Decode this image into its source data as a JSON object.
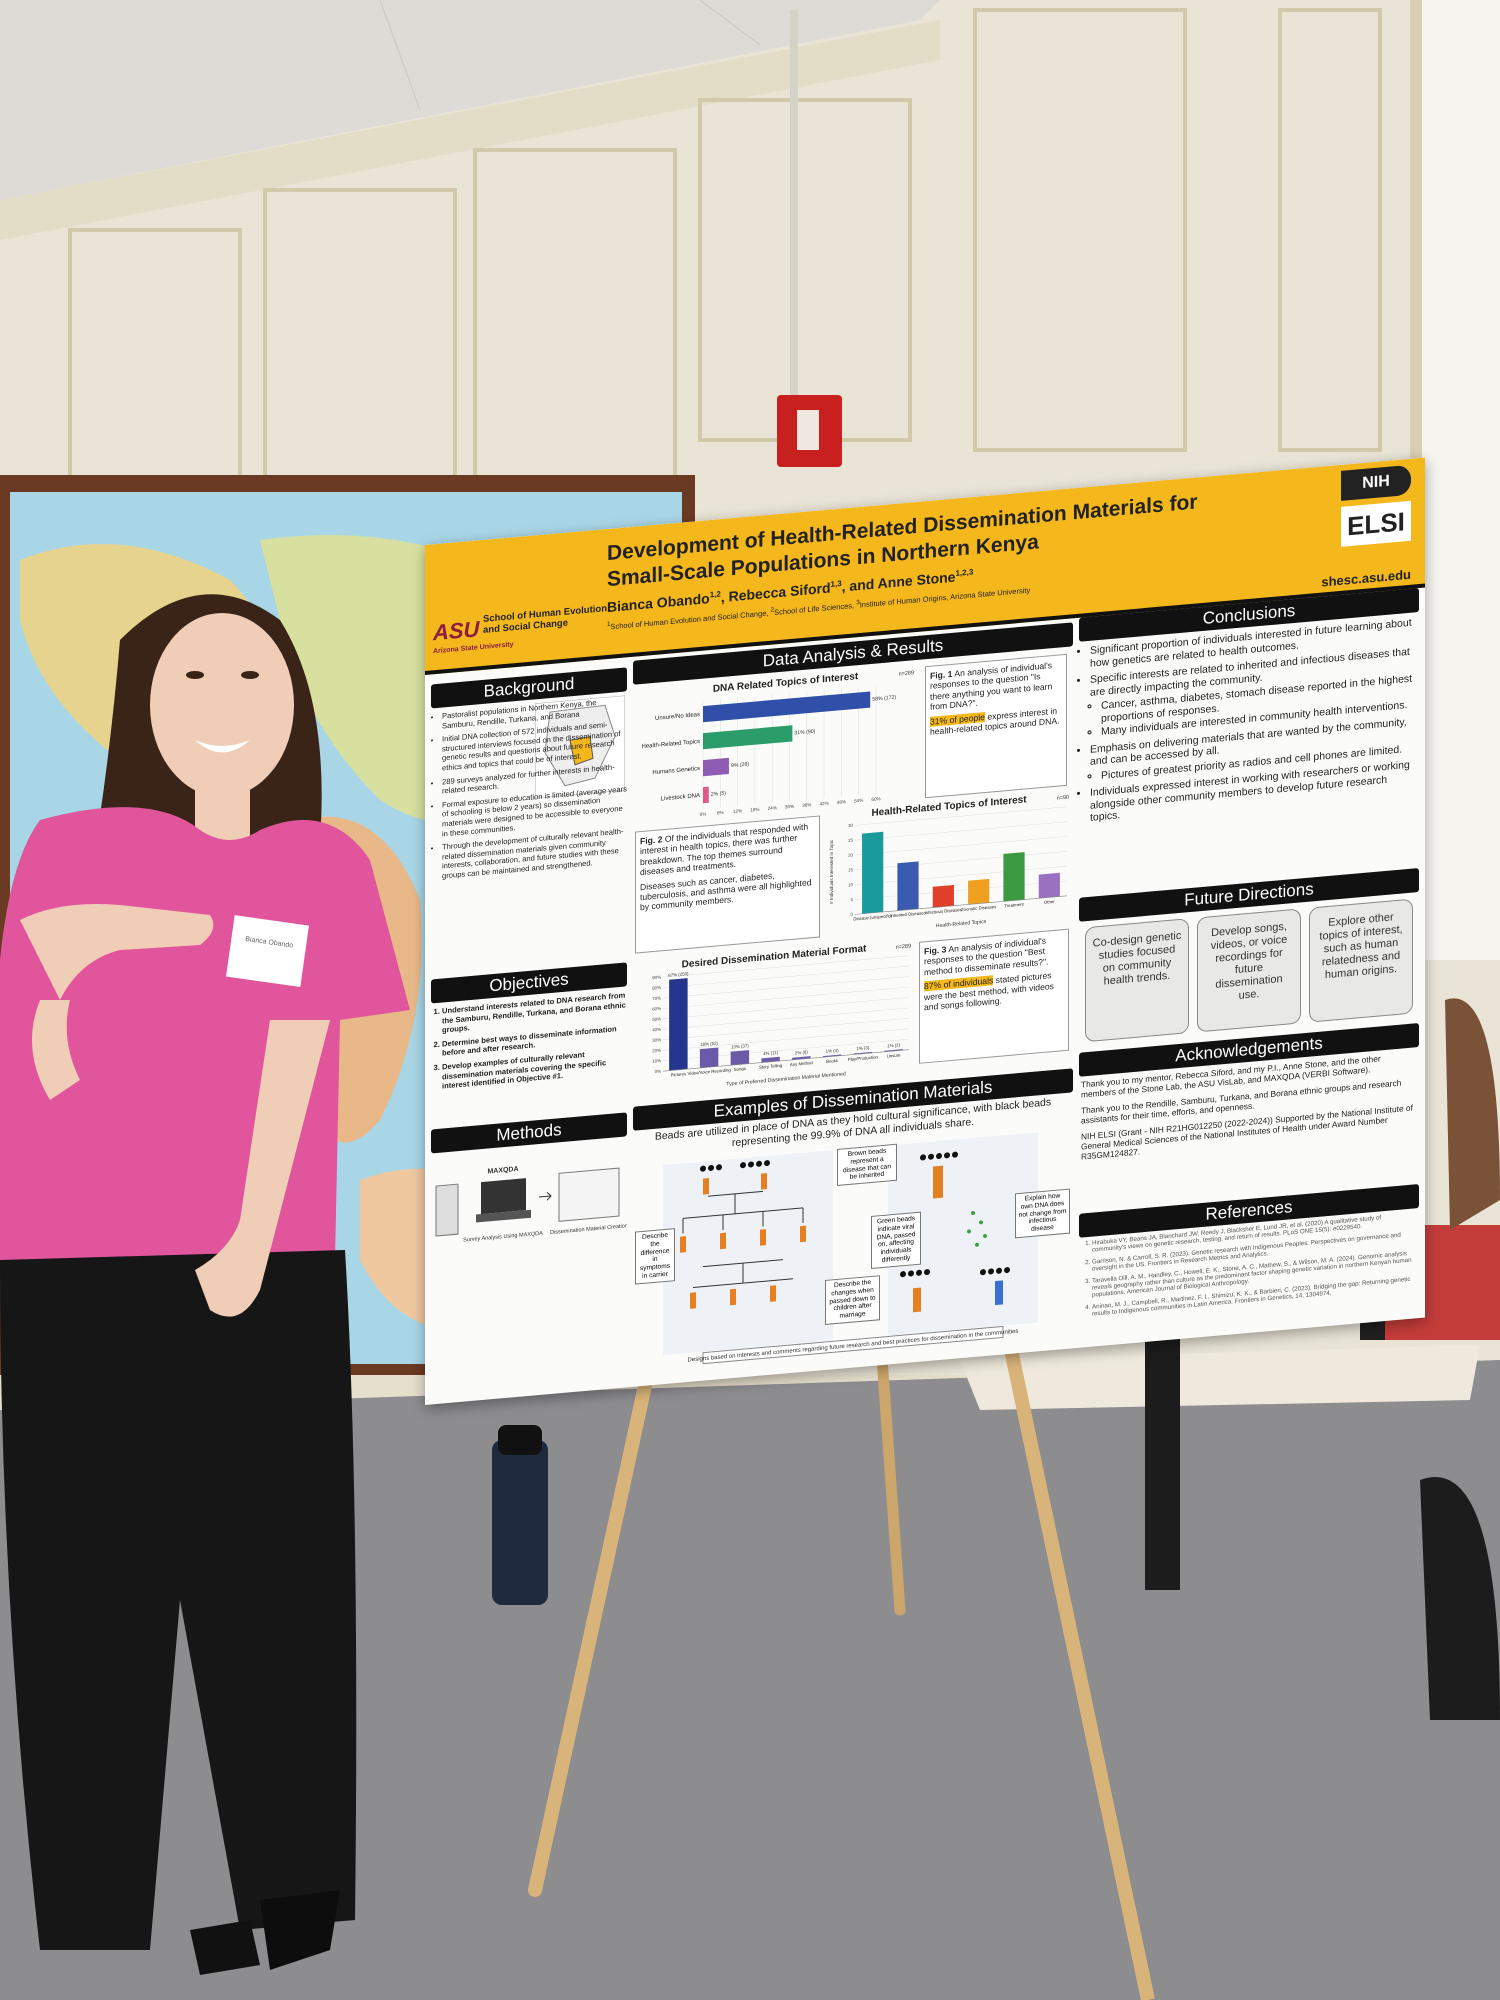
{
  "poster": {
    "header": {
      "logo_mark": "ASU",
      "logo_line1": "School of Human Evolution",
      "logo_line2": "and Social Change",
      "logo_line3": "Arizona State University",
      "title_line1": "Development of Health-Related Dissemination Materials for",
      "title_line2": "Small-Scale Populations in Northern Kenya",
      "authors": [
        {
          "name": "Bianca Obando",
          "sup": "1,2"
        },
        {
          "name": ", Rebecca Siford",
          "sup": "1,3"
        },
        {
          "name": ", and Anne Stone",
          "sup": "1,2,3"
        }
      ],
      "affiliations": [
        {
          "sup": "1",
          "name": "School of Human Evolution and Social Change, "
        },
        {
          "sup": "2",
          "name": "School of Life Sciences, "
        },
        {
          "sup": "3",
          "name": "Institute of Human Origins, Arizona State University"
        }
      ],
      "url": "shesc.asu.edu",
      "nih": "NIH",
      "elsi": "ELSI"
    },
    "background": {
      "heading": "Background",
      "items": [
        "Pastoralist populations in Northern Kenya, the Samburu, Rendille, Turkana, and Borana",
        "Initial DNA collection of 572 individuals and semi-structured interviews focused on the dissemination of genetic results and questions about future research ethics and topics that could be of interest.",
        "289 surveys analyzed for further interests in health-related research.",
        "Formal exposure to education is limited (average years of schooling is below 2 years) so dissemination materials were designed to be accessible to everyone in these communities.",
        "Through the development of culturally relevant health-related dissemination materials given community interests, collaboration, and future studies with these groups can be maintained and strengthened."
      ]
    },
    "objectives": {
      "heading": "Objectives",
      "items": [
        "Understand interests related to DNA research from the Samburu, Rendille, Turkana, and Borana ethnic groups.",
        "Determine best ways to disseminate information before and after research.",
        "Develop examples of culturally relevant dissemination materials covering the specific interest identified in Objective #1."
      ]
    },
    "methods": {
      "heading": "Methods",
      "software": "MAXQDA",
      "step1": "Survey Analysis Using MAXQDA",
      "step2": "Dissemination Material Creation"
    },
    "results": {
      "heading": "Data Analysis & Results",
      "fig1": {
        "type": "bar",
        "horizontal": true,
        "title": "DNA Related Topics of Interest",
        "n": "n=289",
        "categories": [
          "Unsure/No Ideas",
          "Health-Related Topics",
          "Humans Genetics",
          "Livestock DNA"
        ],
        "values": [
          58,
          31,
          9,
          2
        ],
        "value_labels": [
          "58% (172)",
          "31% (90)",
          "9% (28)",
          "2% (5)"
        ],
        "colors": [
          "#2f4fa8",
          "#2a9d6a",
          "#8e5bb5",
          "#e05a8a"
        ],
        "xlim": [
          0,
          60
        ],
        "xticks": [
          {
            "value": 0,
            "label": "0%"
          },
          {
            "value": 6,
            "label": "6%"
          },
          {
            "value": 12,
            "label": "12%"
          },
          {
            "value": 18,
            "label": "18%"
          },
          {
            "value": 24,
            "label": "24%"
          },
          {
            "value": 30,
            "label": "30%"
          },
          {
            "value": 36,
            "label": "36%"
          },
          {
            "value": 42,
            "label": "42%"
          },
          {
            "value": 48,
            "label": "48%"
          },
          {
            "value": 54,
            "label": "54%"
          },
          {
            "value": 60,
            "label": "60%"
          }
        ],
        "grid": true
      },
      "fig1_caption": {
        "label": "Fig. 1",
        "text": " An analysis of individual's responses to the question \"Is there anything you want to learn from DNA?\".",
        "highlight": "31% of people",
        "rest": " express interest in health-related topics around DNA."
      },
      "fig2_caption": {
        "label": "Fig. 2",
        "text": " Of the individuals that responded with interest in health topics, there was further breakdown. The top themes surround diseases and treatments.",
        "text2": "Diseases such as cancer, diabetes, tuberculosis, and asthma were all highlighted by community members."
      },
      "fig2": {
        "type": "bar",
        "horizontal": false,
        "title": "Health-Related Topics of Interest",
        "n": "n=90",
        "categories": [
          "Disease (unspecific)",
          "Inherited Diseases",
          "Infectious Diseases",
          "Zoonotic Diseases",
          "Treatment",
          "Other"
        ],
        "values": [
          27,
          16,
          7,
          8,
          16,
          8
        ],
        "colors": [
          "#1a9a9a",
          "#3a5bb0",
          "#e0402a",
          "#f0a020",
          "#3a9a40",
          "#9a70c0"
        ],
        "ylim": [
          0,
          30
        ],
        "yticks": [
          0,
          5,
          10,
          15,
          20,
          25,
          30
        ],
        "grid": true,
        "xlabel": "Health-Related Topics",
        "ylabel": "# Individuals Interested in Topic"
      },
      "fig3": {
        "type": "bar",
        "horizontal": false,
        "title": "Desired Dissemination Material Format",
        "n": "n=289",
        "categories": [
          "Pictures",
          "Video/Voice Recording",
          "Songs",
          "Story Telling",
          "Any Method",
          "Books",
          "Play/Production",
          "Unsure"
        ],
        "values": [
          87,
          18,
          13,
          4,
          2,
          1,
          1,
          1
        ],
        "value_labels": [
          "87% (250)",
          "18% (52)",
          "13% (37)",
          "4% (11)",
          "2% (6)",
          "1% (4)",
          "1% (3)",
          "1% (2)"
        ],
        "colors": [
          "#26368f",
          "#6a5aa8",
          "#6a5aa8",
          "#6a5aa8",
          "#6a5aa8",
          "#6a5aa8",
          "#6a5aa8",
          "#6a5aa8"
        ],
        "ylim": [
          0,
          90
        ],
        "yticks": [
          {
            "value": 0,
            "label": "0%"
          },
          {
            "value": 10,
            "label": "10%"
          },
          {
            "value": 20,
            "label": "20%"
          },
          {
            "value": 30,
            "label": "30%"
          },
          {
            "value": 40,
            "label": "40%"
          },
          {
            "value": 50,
            "label": "50%"
          },
          {
            "value": 60,
            "label": "60%"
          },
          {
            "value": 70,
            "label": "70%"
          },
          {
            "value": 80,
            "label": "80%"
          },
          {
            "value": 90,
            "label": "90%"
          }
        ],
        "grid": true,
        "xlabel": "Type of Preferred Dissemination Material Mentioned"
      },
      "fig3_caption": {
        "label": "Fig. 3",
        "text": " An analysis of individual's responses to the question \"Best method to disseminate results?\".",
        "highlight": "87% of individuals",
        "rest": " stated pictures were the best method, with videos and songs following."
      }
    },
    "examples": {
      "heading": "Examples of Dissemination Materials",
      "text": "Beads are utilized in place of DNA as they hold cultural significance, with black beads representing the 99.9% of DNA all individuals share.",
      "callouts": [
        "Brown beads represent a disease that can be inherited",
        "Describe the difference in symptoms in carrier",
        "Green beads indicate viral DNA, passed on, affecting individuals differently",
        "Describe the changes when passed down to children after marriage",
        "Explain how own DNA does not change from infectious disease"
      ],
      "footnote": "Designs based on interests and comments regarding future research and best practices for dissemination in the communities"
    },
    "conclusions": {
      "heading": "Conclusions",
      "items": [
        {
          "text": "Significant proportion of individuals interested in future learning about how genetics are related to health outcomes.",
          "sub": []
        },
        {
          "text": "Specific interests are related to inherited and infectious diseases that are directly impacting the community.",
          "sub": [
            "Cancer, asthma, diabetes, stomach disease reported in the highest proportions of responses.",
            "Many individuals are interested in community health interventions."
          ]
        },
        {
          "text": "Emphasis on delivering materials that are wanted by the community, and can be accessed by all.",
          "sub": [
            "Pictures of greatest priority as radios and cell phones are limited."
          ]
        },
        {
          "text": "Individuals expressed interest in working with researchers or working alongside other community members to develop future research topics.",
          "sub": []
        }
      ]
    },
    "future": {
      "heading": "Future Directions",
      "boxes": [
        "Co-design genetic studies focused on community health trends.",
        "Develop songs, videos, or voice recordings for future dissemination use.",
        "Explore other topics of interest, such as human relatedness and human origins."
      ]
    },
    "acknowledgements": {
      "heading": "Acknowledgements",
      "paragraphs": [
        "Thank you to my mentor, Rebecca Siford, and my P.I., Anne Stone, and the other members of the Stone Lab, the ASU VisLab, and MAXQDA (VERBI Software).",
        "Thank you to the Rendille, Samburu, Turkana, and Borana ethnic groups and research assistants for their time, efforts, and openness.",
        "NIH ELSI (Grant - NIH R21HG012250 (2022-2024)) Supported by the National Institute of General Medical Sciences of the National Institutes of Health under Award Number R35GM124827."
      ]
    },
    "references": {
      "heading": "References",
      "items": [
        "Hirabuka VY, Beans JA, Blanchard JW, Reedy J, Blacksher E, Lund JR, et al. (2020) A qualitative study of community's views on genetic research, testing, and return of results. PLoS ONE 15(5): e0229540.",
        "Garrison, N. & Carroll, S. R. (2023). Genetic research with Indigenous Peoples: Perspectives on governance and oversight in the US. Frontiers in Research Metrics and Analytics.",
        "Taravella Oill, A. M., Handley, C., Howell, E. K., Stone, A. C., Mathew, S., & Wilson, M. A. (2024). Genomic analysis reveals geography rather than culture as the predominant factor shaping genetic variation in northern Kenyan human populations. American Journal of Biological Anthropology.",
        "Aninao, M. J., Campbell, R., Martinez, F. I., Shimizu, K. K., & Barbieri, C. (2023). Bridging the gap: Returning genetic results to Indigenous communities in Latin America. Frontiers in Genetics, 14, 1304974."
      ]
    }
  },
  "name_tag": "Bianca Obando"
}
